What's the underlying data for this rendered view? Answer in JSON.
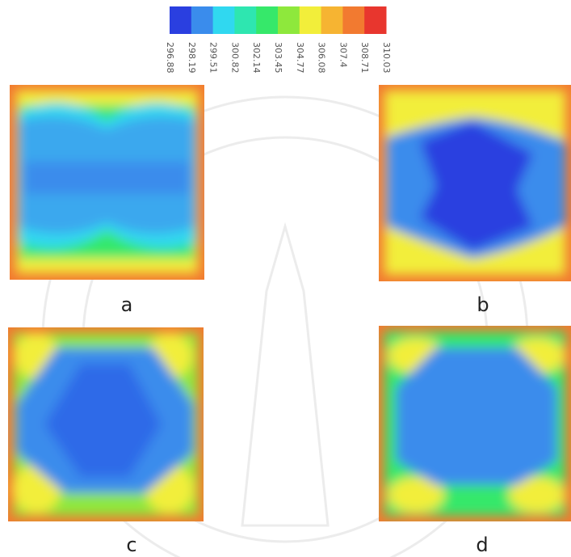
{
  "colorbar": {
    "colors": [
      "#2a3fe0",
      "#3a8cec",
      "#30d8f0",
      "#2ee6b0",
      "#36e86a",
      "#8ee83c",
      "#f2ee3a",
      "#f6b432",
      "#f27a30",
      "#e8362e"
    ],
    "ticks": [
      296.88,
      298.19,
      299.51,
      300.82,
      302.14,
      303.45,
      304.77,
      306.08,
      307.4,
      308.71,
      310.03
    ]
  },
  "panels": [
    {
      "label": "a"
    },
    {
      "label": "b"
    },
    {
      "label": "c"
    },
    {
      "label": "d"
    }
  ]
}
